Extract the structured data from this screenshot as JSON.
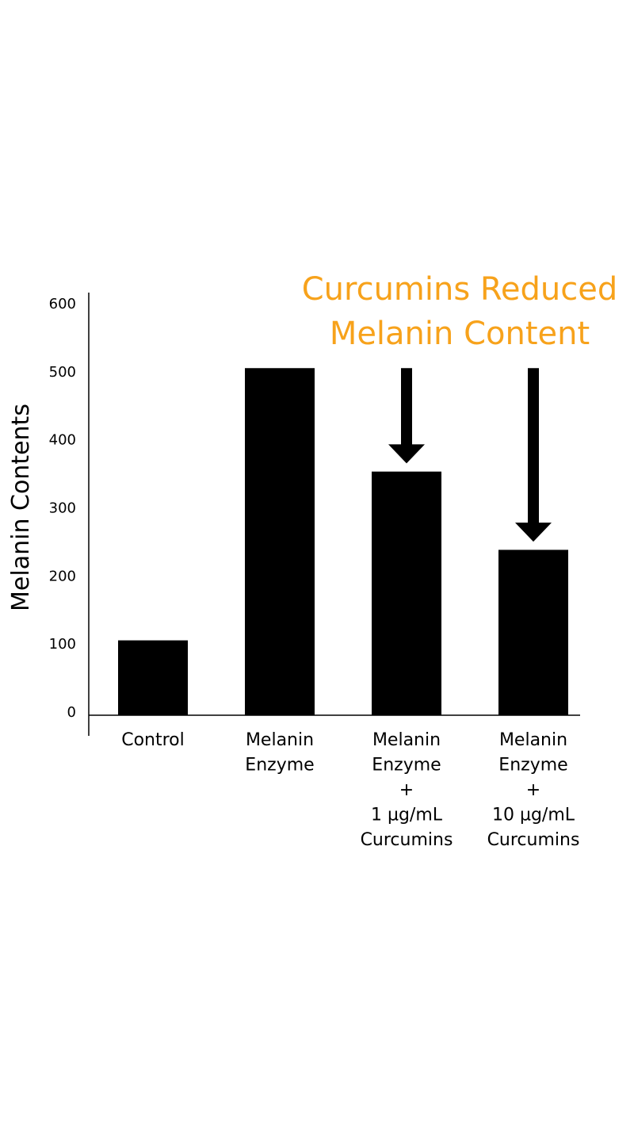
{
  "chart_data": {
    "type": "bar",
    "title_lines": [
      "Curcumins Reduced",
      "Melanin Content"
    ],
    "ylabel": "Melanin Contents",
    "xlabel": "",
    "ylim": [
      0,
      600
    ],
    "yticks": [
      0,
      100,
      200,
      300,
      400,
      500,
      600
    ],
    "categories": [
      [
        "Control"
      ],
      [
        "Melanin",
        "Enzyme"
      ],
      [
        "Melanin",
        "Enzyme",
        "+",
        "1 µg/mL",
        "Curcumins"
      ],
      [
        "Melanin",
        "Enzyme",
        "+",
        "10 µg/mL",
        "Curcumins"
      ]
    ],
    "values": [
      110,
      510,
      358,
      243
    ],
    "grid": false,
    "legend": "none",
    "colors": {
      "bars": "#000000",
      "title": "#F7A21B",
      "arrows": "#000000"
    },
    "annotations": [
      {
        "type": "arrow-down",
        "category_index": 2,
        "from_value": 510,
        "to_value": 370
      },
      {
        "type": "arrow-down",
        "category_index": 3,
        "from_value": 510,
        "to_value": 255
      }
    ]
  }
}
